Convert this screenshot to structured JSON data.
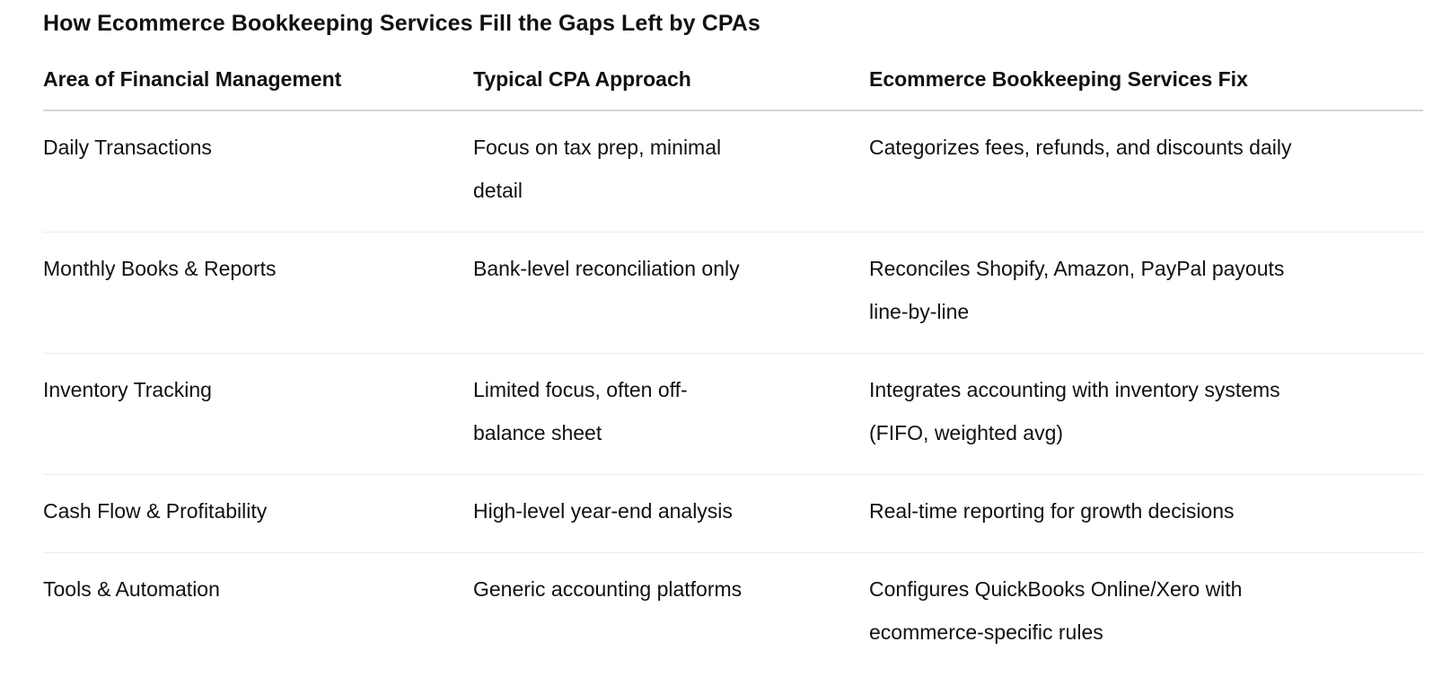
{
  "page": {
    "title": "How Ecommerce Bookkeeping Services Fill the Gaps Left by CPAs"
  },
  "colors": {
    "background": "#ffffff",
    "text": "#111111",
    "header_divider": "#d4d4d4",
    "row_divider": "#ececec"
  },
  "table": {
    "columns": [
      "Area of Financial Management",
      "Typical CPA Approach",
      "Ecommerce Bookkeeping Services Fix"
    ],
    "rows": [
      {
        "area": "Daily Transactions",
        "cpa": "Focus on tax prep, minimal\ndetail",
        "fix": "Categorizes fees, refunds, and discounts daily"
      },
      {
        "area": "Monthly Books & Reports",
        "cpa": "Bank-level reconciliation only",
        "fix": "Reconciles Shopify, Amazon, PayPal payouts\nline-by-line"
      },
      {
        "area": "Inventory Tracking",
        "cpa": "Limited focus, often off-\nbalance sheet",
        "fix": "Integrates accounting with inventory systems\n(FIFO, weighted avg)"
      },
      {
        "area": "Cash Flow & Profitability",
        "cpa": "High-level year-end analysis",
        "fix": "Real-time reporting for growth decisions"
      },
      {
        "area": "Tools & Automation",
        "cpa": "Generic accounting platforms",
        "fix": "Configures QuickBooks Online/Xero with\necommerce-specific rules"
      }
    ]
  }
}
